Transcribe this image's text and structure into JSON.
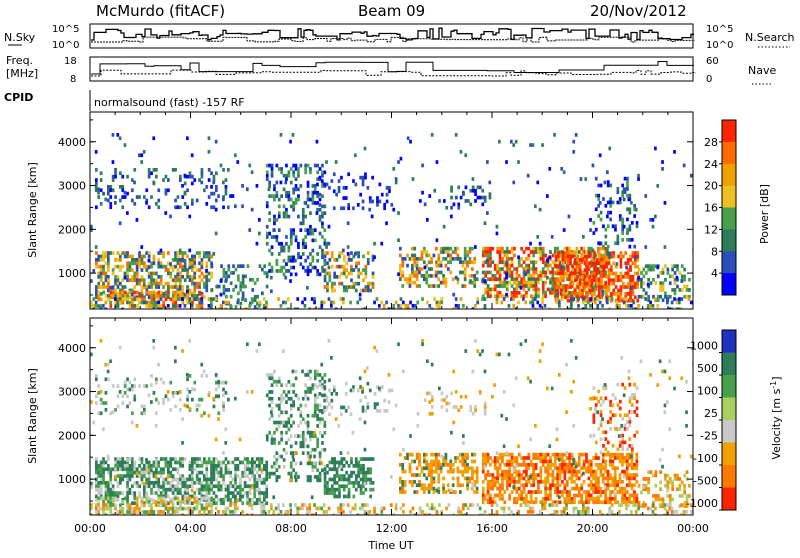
{
  "header": {
    "site": "McMurdo (fitACF)",
    "beam": "Beam 09",
    "date": "20/Nov/2012"
  },
  "top_panels": {
    "nsky_label": "N.Sky",
    "nsky_ticks": [
      "10^5",
      "10^0"
    ],
    "nsearch_label": "N.Search",
    "nsearch_ticks": [
      "10^5",
      "10^0"
    ],
    "freq_label_line1": "Freq.",
    "freq_label_line2": "[MHz]",
    "freq_ticks": [
      "18",
      "8"
    ],
    "nave_label": "Nave",
    "nave_ticks": [
      "60",
      "0"
    ],
    "cpid_label": "CPID",
    "cpid_text": "normalsound (fast) -157 RF"
  },
  "chart_data": [
    {
      "type": "heatmap",
      "name": "power-panel",
      "ylabel": "Slant Range [km]",
      "yticks": [
        "1000",
        "2000",
        "3000",
        "4000"
      ],
      "ylim": [
        180,
        4680
      ],
      "xlim": [
        0,
        24
      ],
      "colorbar": {
        "label": "Power [dB]",
        "ticks": [
          "4",
          "8",
          "12",
          "16",
          "20",
          "24",
          "28"
        ],
        "range": [
          0,
          32
        ]
      }
    },
    {
      "type": "heatmap",
      "name": "velocity-panel",
      "ylabel": "Slant Range [km]",
      "yticks": [
        "1000",
        "2000",
        "3000",
        "4000"
      ],
      "ylim": [
        180,
        4680
      ],
      "xlabel": "Time UT",
      "xticks": [
        "00:00",
        "04:00",
        "08:00",
        "12:00",
        "16:00",
        "20:00",
        "00:00"
      ],
      "xlim": [
        0,
        24
      ],
      "colorbar": {
        "label": "Velocity [m s^-1]",
        "ticks": [
          "1000",
          "500",
          "100",
          "25",
          "-25",
          "-100",
          "-500",
          "-1000"
        ]
      }
    }
  ],
  "colors": {
    "power_scale": [
      "#0000ff",
      "#2a4fb8",
      "#2e7d5a",
      "#49a04c",
      "#f0c020",
      "#f0a000",
      "#ff6a00",
      "#ff2400"
    ],
    "velocity_scale": [
      "#2030c0",
      "#2e7d5a",
      "#49a04c",
      "#a8d060",
      "#c8c8c8",
      "#f0a000",
      "#ff7a00",
      "#ff2400"
    ]
  }
}
